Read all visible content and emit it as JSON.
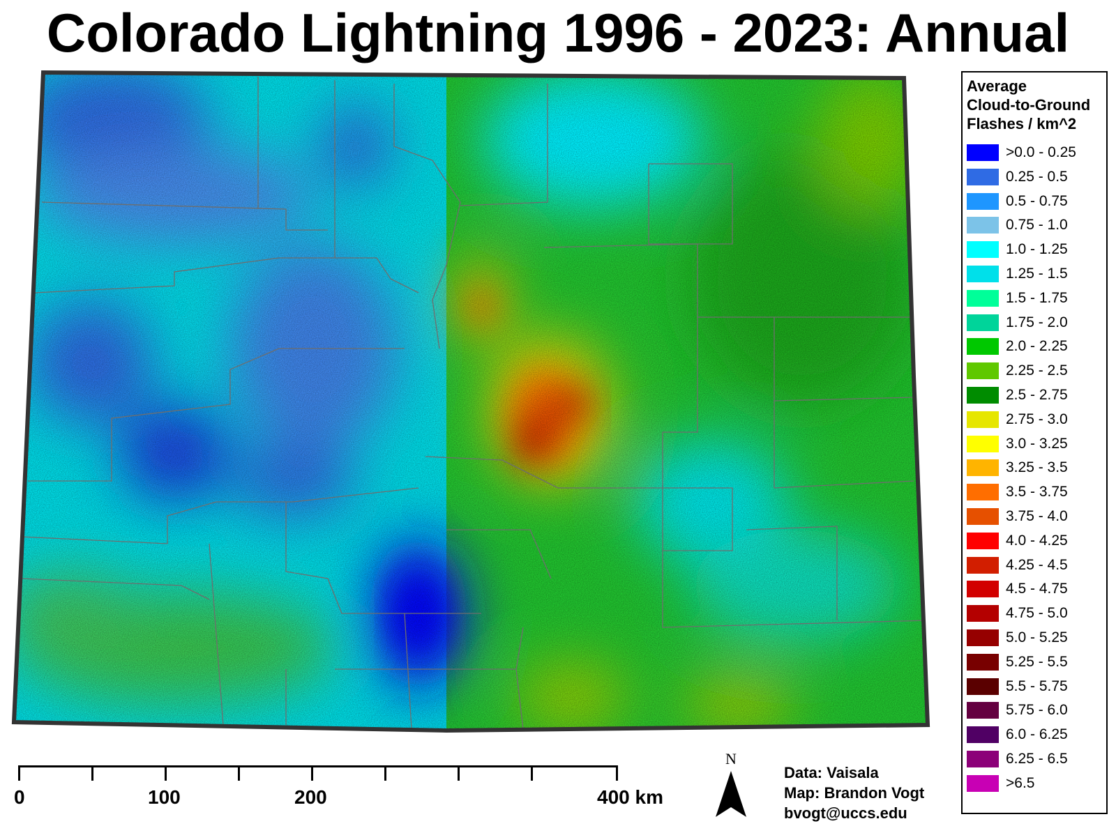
{
  "title": "Colorado Lightning 1996 - 2023: Annual",
  "legend": {
    "title_lines": [
      "Average",
      "Cloud-to-Ground",
      "Flashes / km^2"
    ],
    "items": [
      {
        "label": ">0.0 - 0.25",
        "color": "#0000ff"
      },
      {
        "label": "0.25 - 0.5",
        "color": "#2f6be4"
      },
      {
        "label": "0.5 - 0.75",
        "color": "#1e96ff"
      },
      {
        "label": "0.75 - 1.0",
        "color": "#7cc3e8"
      },
      {
        "label": "1.0 - 1.25",
        "color": "#00ffff"
      },
      {
        "label": "1.25 - 1.5",
        "color": "#00e0ea"
      },
      {
        "label": "1.5 - 1.75",
        "color": "#00ff99"
      },
      {
        "label": "1.75 - 2.0",
        "color": "#00d49a"
      },
      {
        "label": "2.0 - 2.25",
        "color": "#00c800"
      },
      {
        "label": "2.25 - 2.5",
        "color": "#5fc800"
      },
      {
        "label": "2.5 - 2.75",
        "color": "#008c00"
      },
      {
        "label": "2.75 - 3.0",
        "color": "#e6e600"
      },
      {
        "label": "3.0 - 3.25",
        "color": "#ffff00"
      },
      {
        "label": "3.25 - 3.5",
        "color": "#ffb400"
      },
      {
        "label": "3.5 - 3.75",
        "color": "#ff6e00"
      },
      {
        "label": "3.75 - 4.0",
        "color": "#e65000"
      },
      {
        "label": "4.0 - 4.25",
        "color": "#ff0000"
      },
      {
        "label": "4.25 - 4.5",
        "color": "#d21e00"
      },
      {
        "label": "4.5 - 4.75",
        "color": "#d20000"
      },
      {
        "label": "4.75 - 5.0",
        "color": "#b40000"
      },
      {
        "label": "5.0 - 5.25",
        "color": "#960000"
      },
      {
        "label": "5.25 - 5.5",
        "color": "#780000"
      },
      {
        "label": "5.5 - 5.75",
        "color": "#5a0000"
      },
      {
        "label": "5.75 - 6.0",
        "color": "#640040"
      },
      {
        "label": "6.0 - 6.25",
        "color": "#500064"
      },
      {
        "label": "6.25 - 6.5",
        "color": "#8c0078"
      },
      {
        "label": ">6.5",
        "color": "#c800b4"
      }
    ]
  },
  "scale_bar": {
    "labels": [
      "0",
      "100",
      "200",
      "400 km"
    ]
  },
  "north_arrow": {
    "label": "N"
  },
  "credits": {
    "data": "Data: Vaisala",
    "map": "Map: Brandon Vogt",
    "email": "bvogt@uccs.edu"
  },
  "colors": {
    "outline": "#333333",
    "county_lines": "#6e6e6e"
  }
}
